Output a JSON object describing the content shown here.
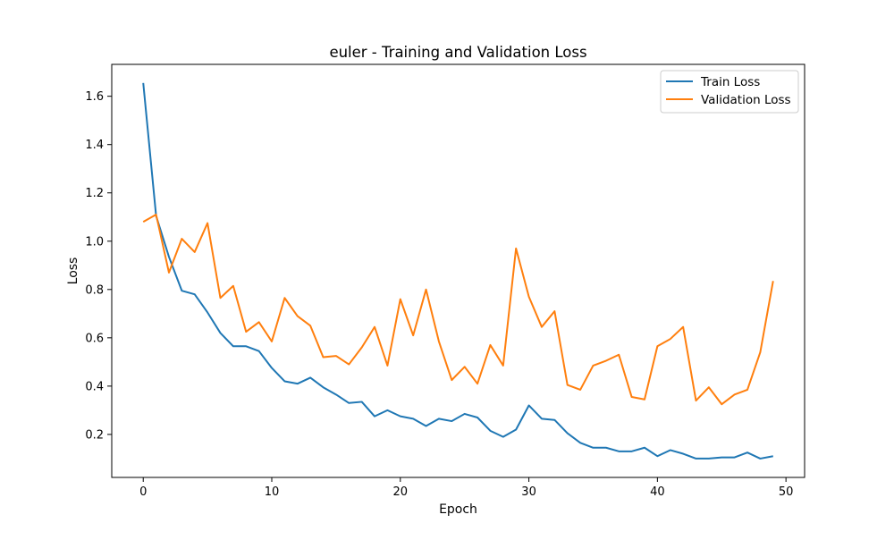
{
  "colors": {
    "train": "#1f77b4",
    "validation": "#ff7f0e"
  },
  "chart_data": {
    "type": "line",
    "title": "euler - Training and Validation Loss",
    "xlabel": "Epoch",
    "ylabel": "Loss",
    "xlim": [
      -2.45,
      51.45
    ],
    "ylim": [
      0.022,
      1.732
    ],
    "xticks": [
      0,
      10,
      20,
      30,
      40,
      50
    ],
    "yticks": [
      0.2,
      0.4,
      0.6,
      0.8,
      1.0,
      1.2,
      1.4,
      1.6
    ],
    "xtick_labels": [
      "0",
      "10",
      "20",
      "30",
      "40",
      "50"
    ],
    "ytick_labels": [
      "0.2",
      "0.4",
      "0.6",
      "0.8",
      "1.0",
      "1.2",
      "1.4",
      "1.6"
    ],
    "grid": false,
    "legend_position": "upper-right",
    "x": [
      0,
      1,
      2,
      3,
      4,
      5,
      6,
      7,
      8,
      9,
      10,
      11,
      12,
      13,
      14,
      15,
      16,
      17,
      18,
      19,
      20,
      21,
      22,
      23,
      24,
      25,
      26,
      27,
      28,
      29,
      30,
      31,
      32,
      33,
      34,
      35,
      36,
      37,
      38,
      39,
      40,
      41,
      42,
      43,
      44,
      45,
      46,
      47,
      48,
      49
    ],
    "series": [
      {
        "name": "Train Loss",
        "values": [
          1.655,
          1.105,
          0.935,
          0.795,
          0.78,
          0.705,
          0.62,
          0.565,
          0.565,
          0.545,
          0.475,
          0.42,
          0.41,
          0.435,
          0.395,
          0.365,
          0.33,
          0.335,
          0.275,
          0.3,
          0.275,
          0.265,
          0.235,
          0.265,
          0.255,
          0.285,
          0.27,
          0.215,
          0.19,
          0.22,
          0.32,
          0.265,
          0.26,
          0.205,
          0.165,
          0.145,
          0.145,
          0.13,
          0.13,
          0.145,
          0.11,
          0.135,
          0.12,
          0.1,
          0.1,
          0.105,
          0.105,
          0.125,
          0.1,
          0.11
        ]
      },
      {
        "name": "Validation Loss",
        "values": [
          1.08,
          1.11,
          0.87,
          1.01,
          0.955,
          1.075,
          0.765,
          0.815,
          0.625,
          0.665,
          0.585,
          0.765,
          0.69,
          0.65,
          0.52,
          0.525,
          0.49,
          0.56,
          0.645,
          0.485,
          0.76,
          0.61,
          0.8,
          0.585,
          0.425,
          0.48,
          0.41,
          0.57,
          0.485,
          0.97,
          0.77,
          0.645,
          0.71,
          0.405,
          0.385,
          0.485,
          0.505,
          0.53,
          0.355,
          0.345,
          0.565,
          0.595,
          0.645,
          0.34,
          0.395,
          0.325,
          0.365,
          0.385,
          0.54,
          0.835
        ]
      }
    ]
  }
}
